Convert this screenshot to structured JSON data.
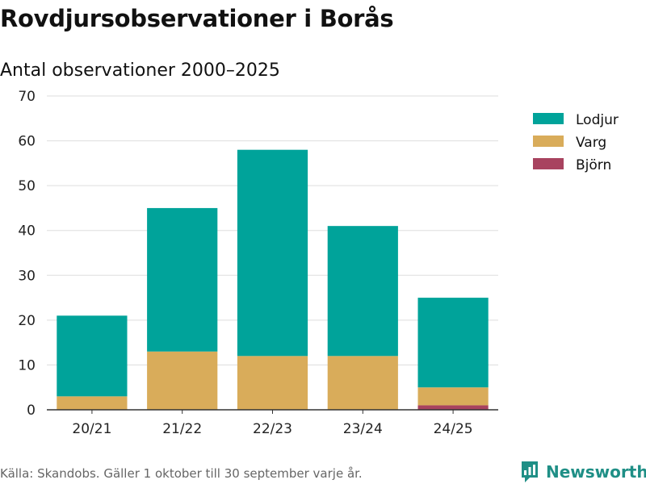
{
  "header": {
    "title": "Rovdjursobservationer i Borås",
    "subtitle": "Antal observationer 2000–2025"
  },
  "footer": {
    "source": "Källa: Skandobs. Gäller 1 oktober till 30 september varje år.",
    "brand": "Newsworthy"
  },
  "colors": {
    "Lodjur": "#00a39a",
    "Varg": "#d9ac5a",
    "Björn": "#a8435f",
    "grid": "#dddddd",
    "axis": "#333333",
    "brand": "#1f8f86"
  },
  "chart_data": {
    "type": "bar",
    "stacked": true,
    "title": "Antal observationer 2000–2025",
    "xlabel": "",
    "ylabel": "",
    "ylim": [
      0,
      70
    ],
    "yticks": [
      0,
      10,
      20,
      30,
      40,
      50,
      60,
      70
    ],
    "grid": true,
    "legend_position": "top-right",
    "categories": [
      "20/21",
      "21/22",
      "22/23",
      "23/24",
      "24/25"
    ],
    "series": [
      {
        "name": "Björn",
        "values": [
          0,
          0,
          0,
          0,
          1
        ]
      },
      {
        "name": "Varg",
        "values": [
          3,
          13,
          12,
          12,
          4
        ]
      },
      {
        "name": "Lodjur",
        "values": [
          18,
          32,
          46,
          29,
          20
        ]
      }
    ],
    "legend_order": [
      "Lodjur",
      "Varg",
      "Björn"
    ]
  }
}
